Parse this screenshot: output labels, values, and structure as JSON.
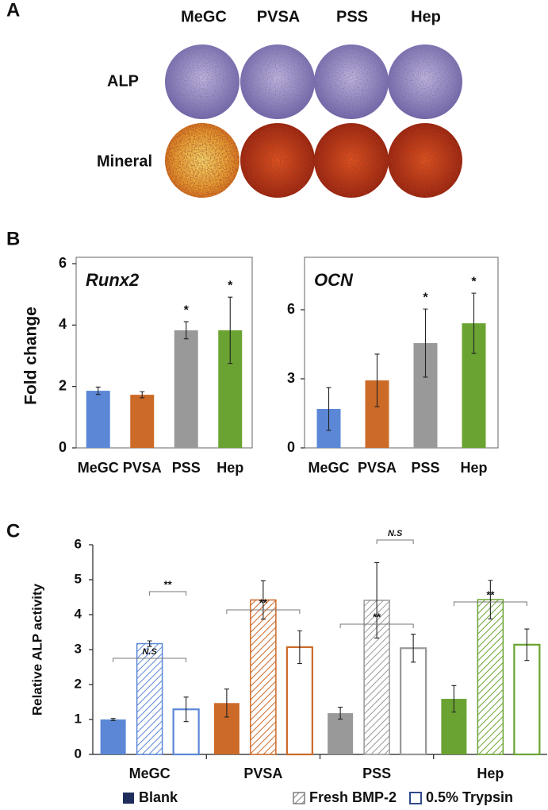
{
  "panel_a": {
    "label": "A",
    "columns": [
      "MeGC",
      "PVSA",
      "PSS",
      "Hep"
    ],
    "rows": [
      "ALP",
      "Mineral"
    ]
  },
  "chart_data": [
    {
      "type": "bar",
      "panel": "B",
      "title": "Runx2",
      "y_label": "Fold change",
      "categories": [
        "MeGC",
        "PVSA",
        "PSS",
        "Hep"
      ],
      "values": [
        1.86,
        1.73,
        3.83,
        3.83
      ],
      "errors": [
        0.12,
        0.1,
        0.28,
        1.08
      ],
      "significance": [
        null,
        null,
        "*",
        "*"
      ],
      "colors": [
        "#5b87d6",
        "#cc6a28",
        "#999999",
        "#6aa332"
      ],
      "ylim": [
        0,
        6
      ],
      "yticks": [
        0,
        2,
        4,
        6
      ]
    },
    {
      "type": "bar",
      "title": "OCN",
      "categories": [
        "MeGC",
        "PVSA",
        "PSS",
        "Hep"
      ],
      "values": [
        1.69,
        2.93,
        4.55,
        5.41
      ],
      "errors": [
        0.93,
        1.14,
        1.48,
        1.31
      ],
      "significance": [
        null,
        null,
        "*",
        "*"
      ],
      "colors": [
        "#5b87d6",
        "#cc6a28",
        "#999999",
        "#6aa332"
      ],
      "ylim": [
        0,
        8
      ],
      "yticks": [
        0,
        3,
        6
      ]
    },
    {
      "type": "grouped_bar",
      "panel": "C",
      "y_label": "Relative ALP activity",
      "categories": [
        "MeGC",
        "PVSA",
        "PSS",
        "Hep"
      ],
      "category_colors": [
        "#5b87d6",
        "#cc6a28",
        "#999999",
        "#6aa332"
      ],
      "series": [
        {
          "name": "Blank",
          "color": "#1f2d5c",
          "style": "solid",
          "values": [
            1.0,
            1.47,
            1.18,
            1.59
          ],
          "errors": [
            0.03,
            0.4,
            0.17,
            0.38
          ]
        },
        {
          "name": "Fresh BMP-2",
          "color": "#7f7f7f",
          "style": "hatch",
          "values": [
            3.17,
            4.42,
            4.41,
            4.43
          ],
          "errors": [
            0.08,
            0.55,
            1.08,
            0.55
          ]
        },
        {
          "name": "0.5% Trypsin",
          "color": "#2f4a8a",
          "style": "outline",
          "values": [
            1.29,
            3.07,
            3.04,
            3.14
          ],
          "errors": [
            0.35,
            0.47,
            0.4,
            0.45
          ]
        }
      ],
      "annotations": [
        "N.S",
        "**",
        "**",
        "**",
        "N.S",
        "**"
      ],
      "ylim": [
        0,
        6
      ],
      "yticks": [
        0,
        1,
        2,
        3,
        4,
        5,
        6
      ]
    }
  ]
}
